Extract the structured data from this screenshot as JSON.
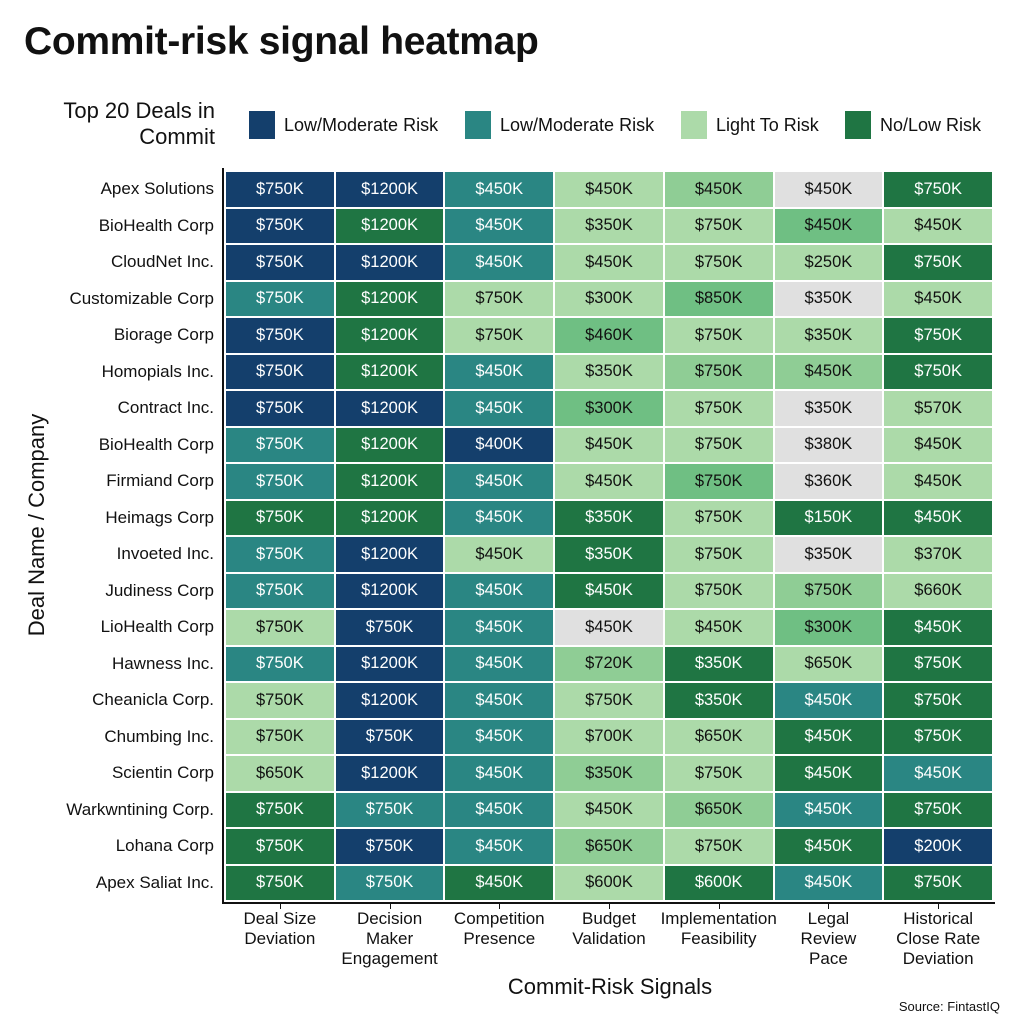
{
  "chart_data": {
    "type": "heatmap",
    "title": "Commit-risk signal heatmap",
    "legend_title": "Top 20 Deals in Commit",
    "legend": [
      {
        "key": "N",
        "label": "Low/Moderate Risk",
        "color": "#143f6c"
      },
      {
        "key": "T",
        "label": "Low/Moderate Risk",
        "color": "#2a8683"
      },
      {
        "key": "L",
        "label": "Light To Risk",
        "color": "#acdaa9"
      },
      {
        "key": "D",
        "label": "No/Low Risk",
        "color": "#1f7543"
      }
    ],
    "extra_colors": {
      "M": "#6fbf83",
      "m": "#8fcd95",
      "G": "#e0e0e0"
    },
    "xlabel": "Commit-Risk Signals",
    "ylabel": "Deal Name / Company",
    "columns": [
      "Deal Size\nDeviation",
      "Decision\nMaker\nEngagement",
      "Competition\nPresence",
      "Budget\nValidation",
      "Implementation\nFeasibility",
      "Legal\nReview\nPace",
      "Historical\nClose Rate\nDeviation"
    ],
    "rows": [
      "Apex Solutions",
      "BioHealth Corp",
      "CloudNet Inc.",
      "Customizable Corp",
      "Biorage Corp",
      "Homopials Inc.",
      "Contract Inc.",
      "BioHealth Corp",
      "Firmiand Corp",
      "Heimags Corp",
      "Invoeted Inc.",
      "Judiness Corp",
      "LioHealth Corp",
      "Hawness Inc.",
      "Cheanicla Corp.",
      "Chumbing Inc.",
      "Scientin Corp",
      "Warkwntining Corp.",
      "Lohana Corp",
      "Apex Saliat Inc."
    ],
    "values_unit": "$K",
    "values": [
      [
        750,
        1200,
        450,
        450,
        450,
        450,
        750
      ],
      [
        750,
        1200,
        450,
        350,
        750,
        450,
        450
      ],
      [
        750,
        1200,
        450,
        450,
        750,
        250,
        750
      ],
      [
        750,
        1200,
        750,
        300,
        850,
        350,
        450
      ],
      [
        750,
        1200,
        750,
        460,
        750,
        350,
        750
      ],
      [
        750,
        1200,
        450,
        350,
        750,
        450,
        750
      ],
      [
        750,
        1200,
        450,
        300,
        750,
        350,
        570
      ],
      [
        750,
        1200,
        400,
        450,
        750,
        380,
        450
      ],
      [
        750,
        1200,
        450,
        450,
        750,
        360,
        450
      ],
      [
        750,
        1200,
        450,
        350,
        750,
        150,
        450
      ],
      [
        750,
        1200,
        450,
        350,
        750,
        350,
        370
      ],
      [
        750,
        1200,
        450,
        450,
        750,
        750,
        660
      ],
      [
        750,
        750,
        450,
        450,
        450,
        300,
        450
      ],
      [
        750,
        1200,
        450,
        720,
        350,
        650,
        750
      ],
      [
        750,
        1200,
        450,
        750,
        350,
        450,
        750
      ],
      [
        750,
        750,
        450,
        700,
        650,
        450,
        750
      ],
      [
        650,
        1200,
        450,
        350,
        750,
        450,
        450
      ],
      [
        750,
        750,
        450,
        450,
        650,
        450,
        750
      ],
      [
        750,
        750,
        450,
        650,
        750,
        450,
        200
      ],
      [
        750,
        750,
        450,
        600,
        600,
        450,
        750
      ]
    ],
    "categories": [
      [
        "N",
        "N",
        "T",
        "L",
        "m",
        "G",
        "D"
      ],
      [
        "N",
        "D",
        "T",
        "L",
        "L",
        "M",
        "L"
      ],
      [
        "N",
        "N",
        "T",
        "L",
        "L",
        "L",
        "D"
      ],
      [
        "T",
        "D",
        "L",
        "L",
        "M",
        "G",
        "L"
      ],
      [
        "N",
        "D",
        "L",
        "M",
        "L",
        "L",
        "D"
      ],
      [
        "N",
        "D",
        "T",
        "L",
        "m",
        "m",
        "D"
      ],
      [
        "N",
        "N",
        "T",
        "M",
        "L",
        "G",
        "L"
      ],
      [
        "T",
        "D",
        "N",
        "L",
        "L",
        "G",
        "L"
      ],
      [
        "T",
        "D",
        "T",
        "L",
        "M",
        "G",
        "L"
      ],
      [
        "D",
        "D",
        "T",
        "D",
        "L",
        "D",
        "D"
      ],
      [
        "T",
        "N",
        "L",
        "D",
        "L",
        "G",
        "L"
      ],
      [
        "T",
        "N",
        "T",
        "D",
        "L",
        "m",
        "L"
      ],
      [
        "L",
        "N",
        "T",
        "G",
        "L",
        "M",
        "D"
      ],
      [
        "T",
        "N",
        "T",
        "m",
        "D",
        "L",
        "D"
      ],
      [
        "L",
        "N",
        "T",
        "L",
        "D",
        "T",
        "D"
      ],
      [
        "L",
        "N",
        "T",
        "L",
        "L",
        "D",
        "D"
      ],
      [
        "L",
        "N",
        "T",
        "m",
        "L",
        "D",
        "T"
      ],
      [
        "D",
        "T",
        "T",
        "L",
        "m",
        "T",
        "D"
      ],
      [
        "D",
        "N",
        "T",
        "m",
        "L",
        "D",
        "N"
      ],
      [
        "D",
        "T",
        "D",
        "L",
        "D",
        "T",
        "D"
      ]
    ],
    "source": "Source: FintastIQ"
  }
}
